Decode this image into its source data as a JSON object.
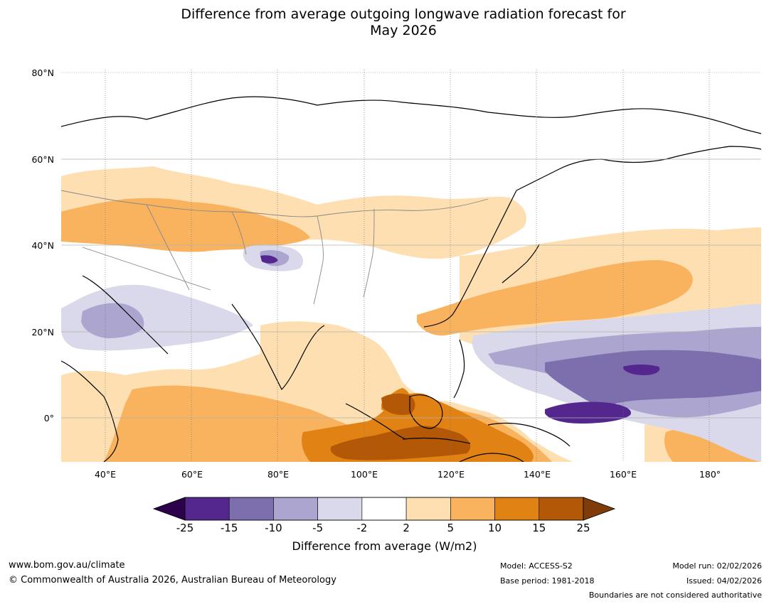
{
  "title": {
    "line1": "Difference from average outgoing longwave radiation forecast for",
    "line2": "May 2026"
  },
  "map": {
    "lat_labels": [
      "80°N",
      "60°N",
      "40°N",
      "20°N",
      "0°"
    ],
    "lon_labels": [
      "40°E",
      "60°E",
      "80°E",
      "100°E",
      "120°E",
      "140°E",
      "160°E",
      "180°"
    ],
    "lat_range": [
      -10,
      80
    ],
    "lon_range": [
      30,
      192
    ]
  },
  "colorbar": {
    "ticks": [
      "-25",
      "-15",
      "-10",
      "-5",
      "-2",
      "2",
      "5",
      "10",
      "15",
      "25"
    ],
    "colors": [
      "#54278f",
      "#7d6eae",
      "#aba5cf",
      "#d9d9eb",
      "#ffffff",
      "#fddfb1",
      "#f9b35f",
      "#e08214",
      "#b35806"
    ],
    "extend_low_color": "#2d004b",
    "extend_high_color": "#7f3b08",
    "label": "Difference from average (W/m2)"
  },
  "footer": {
    "website": "www.bom.gov.au/climate",
    "copyright": "© Commonwealth of Australia 2026, Australian Bureau of Meteorology",
    "model": "Model: ACCESS-S2",
    "base_period": "Base period: 1981-2018",
    "model_run": "Model run: 02/02/2026",
    "issued": "Issued: 04/02/2026",
    "disclaimer": "Boundaries are not considered authoritative"
  }
}
